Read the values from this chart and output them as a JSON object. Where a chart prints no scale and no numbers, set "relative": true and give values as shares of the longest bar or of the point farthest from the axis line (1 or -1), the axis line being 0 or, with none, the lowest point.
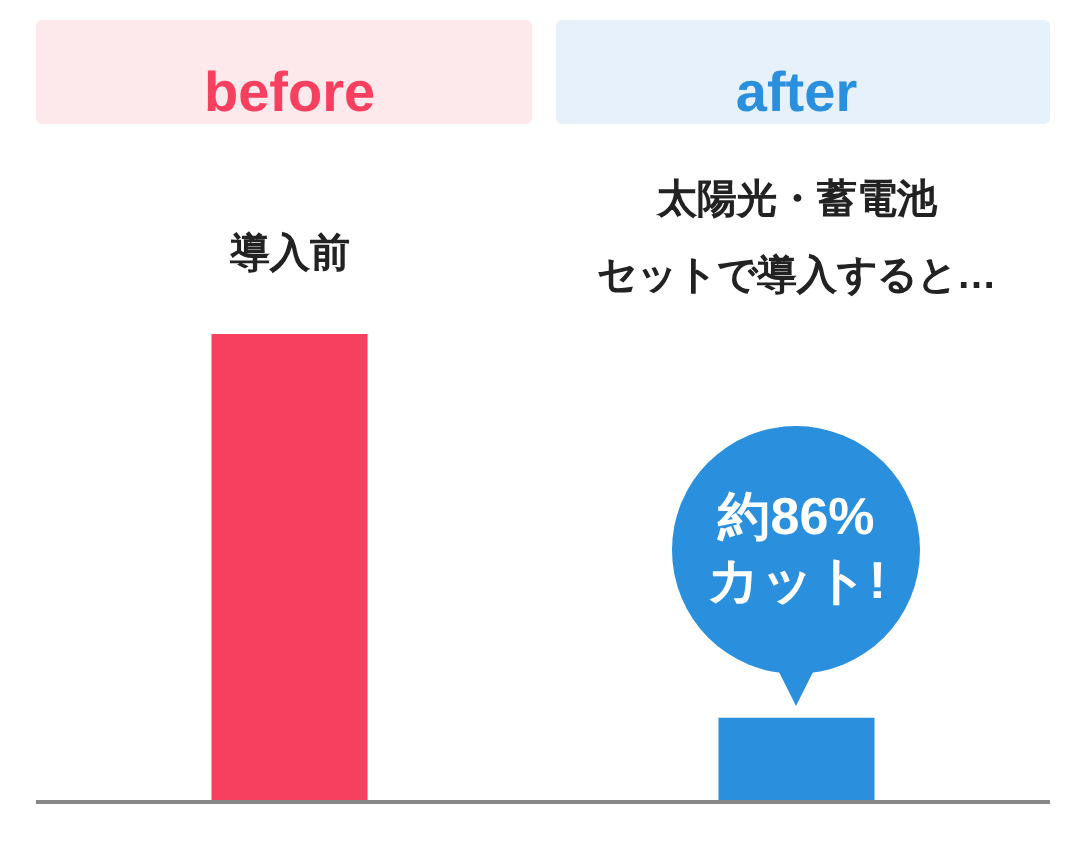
{
  "chart_data": {
    "type": "bar",
    "relative": true,
    "categories": [
      "before",
      "after"
    ],
    "values": [
      1,
      0.18
    ],
    "colors": [
      "#f7405f",
      "#2a8fdc"
    ],
    "annotations": [
      "導入前",
      "太陽光・蓄電池",
      "セットで導入すると…",
      {
        "text": "約86%\nカット!",
        "x": "after",
        "y": 0.18
      }
    ]
  }
}
